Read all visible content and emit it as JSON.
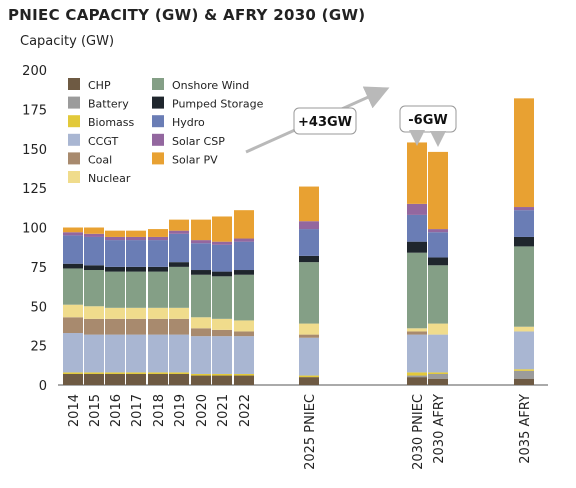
{
  "chart_data": {
    "type": "bar",
    "stacked": true,
    "title": "PNIEC CAPACITY (GW) & AFRY 2030 (GW)",
    "ylabel": "Capacity (GW)",
    "xlabel": "",
    "ylim": [
      0,
      200
    ],
    "yticks": [
      0,
      25,
      50,
      75,
      100,
      125,
      150,
      175,
      200
    ],
    "grid": false,
    "legend_position": "top-left",
    "categories": [
      "2014",
      "2015",
      "2016",
      "2017",
      "2018",
      "2019",
      "2020",
      "2021",
      "2022",
      "2025 PNIEC",
      "2030 PNIEC",
      "2030 AFRY",
      "2035 AFRY"
    ],
    "series": [
      {
        "name": "CHP",
        "color": "#6e5a43",
        "values": [
          7,
          7,
          7,
          7,
          7,
          7,
          6,
          6,
          6,
          5,
          5,
          4,
          4
        ]
      },
      {
        "name": "Battery",
        "color": "#9b9b9b",
        "values": [
          0,
          0,
          0,
          0,
          0,
          0,
          0,
          0,
          0,
          0,
          1,
          3,
          5
        ]
      },
      {
        "name": "Biomass",
        "color": "#e2c93a",
        "values": [
          1,
          1,
          1,
          1,
          1,
          1,
          1,
          1,
          1,
          1,
          2,
          1,
          1
        ]
      },
      {
        "name": "CCGT",
        "color": "#a9b6d2",
        "values": [
          25,
          24,
          24,
          24,
          24,
          24,
          24,
          24,
          24,
          24,
          24,
          24,
          24
        ]
      },
      {
        "name": "Coal",
        "color": "#a88a6e",
        "values": [
          10,
          10,
          10,
          10,
          10,
          10,
          5,
          4,
          3,
          2,
          2,
          0,
          0
        ]
      },
      {
        "name": "Nuclear",
        "color": "#f0dc8c",
        "values": [
          8,
          8,
          7,
          7,
          7,
          7,
          7,
          7,
          7,
          7,
          2,
          7,
          3
        ]
      },
      {
        "name": "Onshore Wind",
        "color": "#849f86",
        "values": [
          23,
          23,
          23,
          23,
          23,
          26,
          27,
          27,
          29,
          39,
          48,
          37,
          51
        ]
      },
      {
        "name": "Pumped Storage",
        "color": "#1f262d",
        "values": [
          3,
          3,
          3,
          3,
          3,
          3,
          3,
          3,
          3,
          4,
          7,
          5,
          6
        ]
      },
      {
        "name": "Hydro",
        "color": "#6a7db5",
        "values": [
          18,
          18,
          17,
          17,
          17,
          18,
          17,
          17,
          18,
          17,
          17,
          16,
          17
        ]
      },
      {
        "name": "Solar CSP",
        "color": "#93679f",
        "values": [
          2,
          2,
          2,
          2,
          2,
          2,
          2,
          2,
          2,
          5,
          7,
          2,
          2
        ]
      },
      {
        "name": "Solar PV",
        "color": "#e8a132",
        "values": [
          3,
          4,
          4,
          4,
          5,
          7,
          13,
          16,
          18,
          22,
          39,
          49,
          69
        ]
      }
    ],
    "annotations": [
      {
        "text": "+43GW"
      },
      {
        "text": "-6GW"
      }
    ]
  }
}
